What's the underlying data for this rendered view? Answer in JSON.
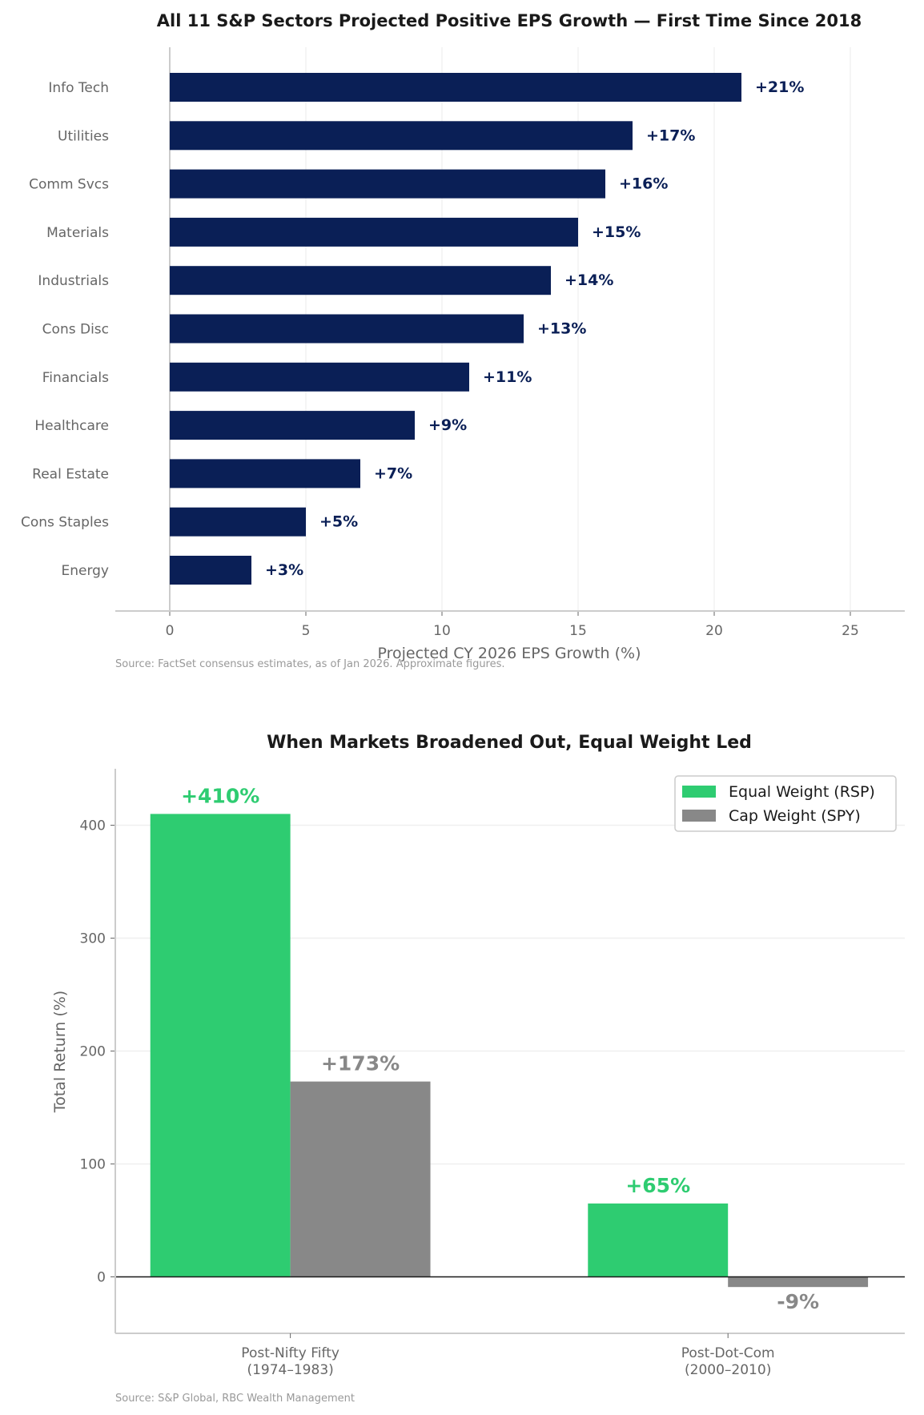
{
  "chart_data": [
    {
      "type": "bar",
      "orientation": "horizontal",
      "title": "All 11 S&P Sectors Projected Positive EPS Growth — First Time Since 2018",
      "xlabel": "Projected CY 2026 EPS Growth (%)",
      "ylabel": "",
      "categories": [
        "Info Tech",
        "Utilities",
        "Comm Svcs",
        "Materials",
        "Industrials",
        "Cons Disc",
        "Financials",
        "Healthcare",
        "Real Estate",
        "Cons Staples",
        "Energy"
      ],
      "values": [
        21,
        17,
        16,
        15,
        14,
        13,
        11,
        9,
        7,
        5,
        3
      ],
      "data_labels": [
        "+21%",
        "+17%",
        "+16%",
        "+15%",
        "+14%",
        "+13%",
        "+11%",
        "+9%",
        "+7%",
        "+5%",
        "+3%"
      ],
      "xlim": [
        -2,
        27
      ],
      "xticks": [
        0,
        5,
        10,
        15,
        20,
        25
      ],
      "grid": "vertical",
      "bar_color": "#0a1f56",
      "source": "Source: FactSet consensus estimates, as of Jan 2026. Approximate figures."
    },
    {
      "type": "bar",
      "title": "When Markets Broadened Out, Equal Weight Led",
      "xlabel": "",
      "ylabel": "Total Return (%)",
      "categories": [
        [
          "Post-Nifty Fifty",
          "(1974–1983)"
        ],
        [
          "Post-Dot-Com",
          "(2000–2010)"
        ]
      ],
      "series": [
        {
          "name": "Equal Weight (RSP)",
          "values": [
            410,
            65
          ],
          "labels": [
            "+410%",
            "+65%"
          ],
          "color": "#2ecc71"
        },
        {
          "name": "Cap Weight (SPY)",
          "values": [
            173,
            -9
          ],
          "labels": [
            "+173%",
            "-9%"
          ],
          "color": "#888888"
        }
      ],
      "ylim": [
        -50,
        450
      ],
      "yticks": [
        0,
        100,
        200,
        300,
        400
      ],
      "grid": "horizontal",
      "legend": "top-right",
      "source": "Source: S&P Global, RBC Wealth Management"
    }
  ]
}
